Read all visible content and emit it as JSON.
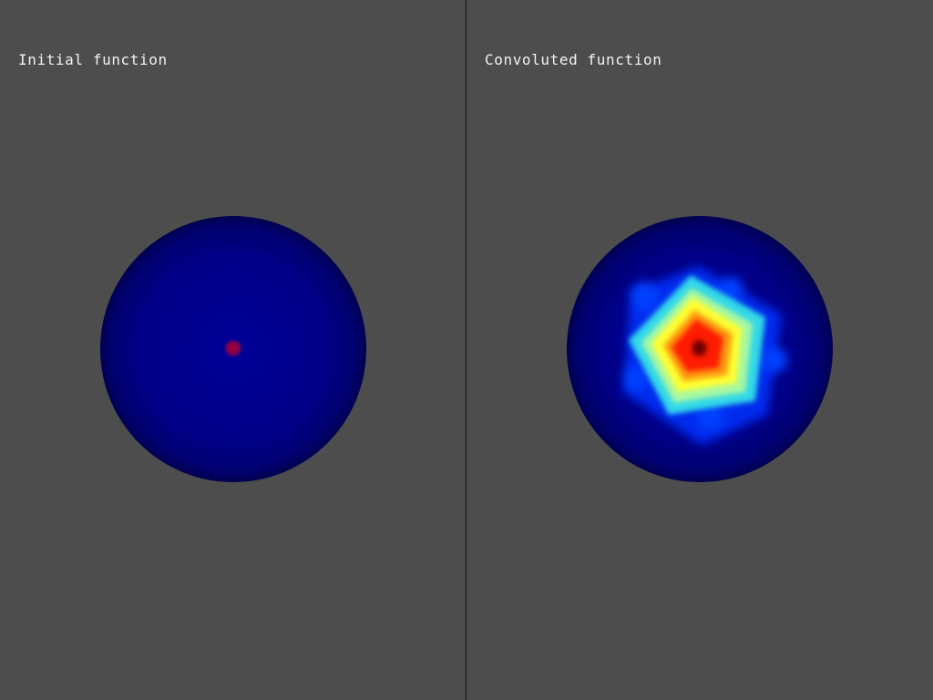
{
  "views": {
    "left": {
      "title": "Initial function"
    },
    "right": {
      "title": "Convoluted function"
    }
  },
  "colors": {
    "background": "#4d4d4d",
    "sphere_base": "#00008b",
    "low": "#0000ff",
    "mid": "#00ffff",
    "high": "#ffff00",
    "peak": "#ff0000"
  }
}
